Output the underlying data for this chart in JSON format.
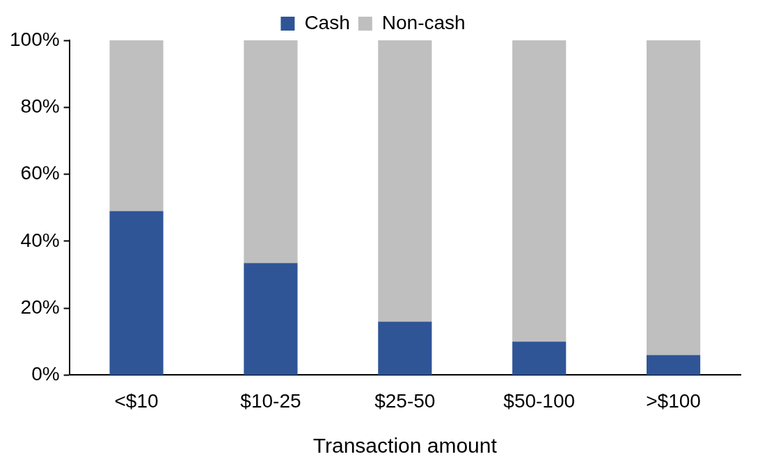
{
  "chart_data": {
    "type": "bar",
    "stacked": true,
    "categories": [
      "<$10",
      "$10-25",
      "$25-50",
      "$50-100",
      ">$100"
    ],
    "xlabel": "Transaction amount",
    "series": [
      {
        "name": "Cash",
        "color": "#2f5597",
        "values": [
          49,
          33.5,
          16,
          10,
          6
        ]
      },
      {
        "name": "Non-cash",
        "color": "#bfbfbf",
        "values": [
          51,
          66.5,
          84,
          90,
          94
        ]
      }
    ],
    "ylim": [
      0,
      100
    ],
    "yticks": [
      {
        "value": 0,
        "label": "0%"
      },
      {
        "value": 20,
        "label": "20%"
      },
      {
        "value": 40,
        "label": "40%"
      },
      {
        "value": 60,
        "label": "60%"
      },
      {
        "value": 80,
        "label": "80%"
      },
      {
        "value": 100,
        "label": "100%"
      }
    ],
    "grid": false,
    "legend": "top"
  }
}
